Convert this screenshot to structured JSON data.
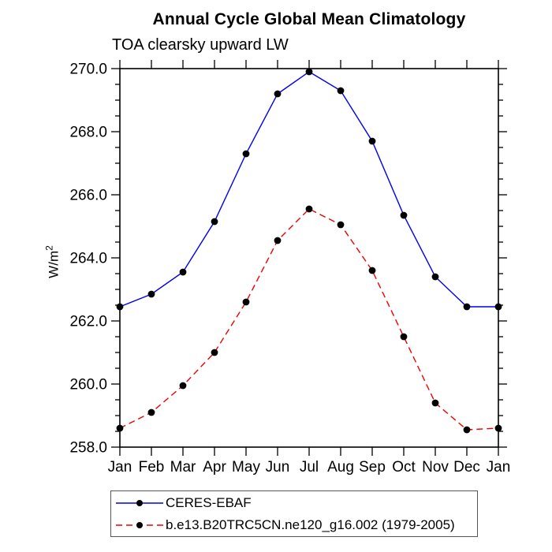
{
  "chart": {
    "title": "Annual Cycle Global Mean Climatology",
    "subtitle": "TOA clearsky upward LW",
    "ylabel_base": "W/m",
    "ylabel_exp": "2"
  },
  "chart_data": {
    "type": "line",
    "title": "Annual Cycle Global Mean Climatology",
    "subtitle": "TOA clearsky upward LW",
    "ylabel": "W/m^2",
    "categories": [
      "Jan",
      "Feb",
      "Mar",
      "Apr",
      "May",
      "Jun",
      "Jul",
      "Aug",
      "Sep",
      "Oct",
      "Nov",
      "Dec",
      "Jan"
    ],
    "ylim": [
      258.0,
      270.0
    ],
    "ytick_step": 2.0,
    "yminor_step": 0.5,
    "ytick_labels": [
      "258.0",
      "260.0",
      "262.0",
      "264.0",
      "266.0",
      "268.0",
      "270.0"
    ],
    "grid": false,
    "legend_position": "bottom-left-boxed",
    "marker": "filled-black-circle",
    "marker_color": "#000000",
    "axis_color": "#000000",
    "series": [
      {
        "name": "CERES-EBAF",
        "color": "#0000ee",
        "line_style": "solid",
        "dash": "",
        "values": [
          262.45,
          262.85,
          263.55,
          265.15,
          267.3,
          269.2,
          269.9,
          269.3,
          267.7,
          265.35,
          263.4,
          262.45,
          262.45
        ]
      },
      {
        "name": "b.e13.B20TRC5CN.ne120_g16.002 (1979-2005)",
        "color": "#ee0000",
        "line_style": "dashed",
        "dash": "8,5",
        "values": [
          258.6,
          259.1,
          259.95,
          261.0,
          262.6,
          264.55,
          265.55,
          265.05,
          263.6,
          261.5,
          259.4,
          258.55,
          258.6
        ]
      }
    ]
  }
}
